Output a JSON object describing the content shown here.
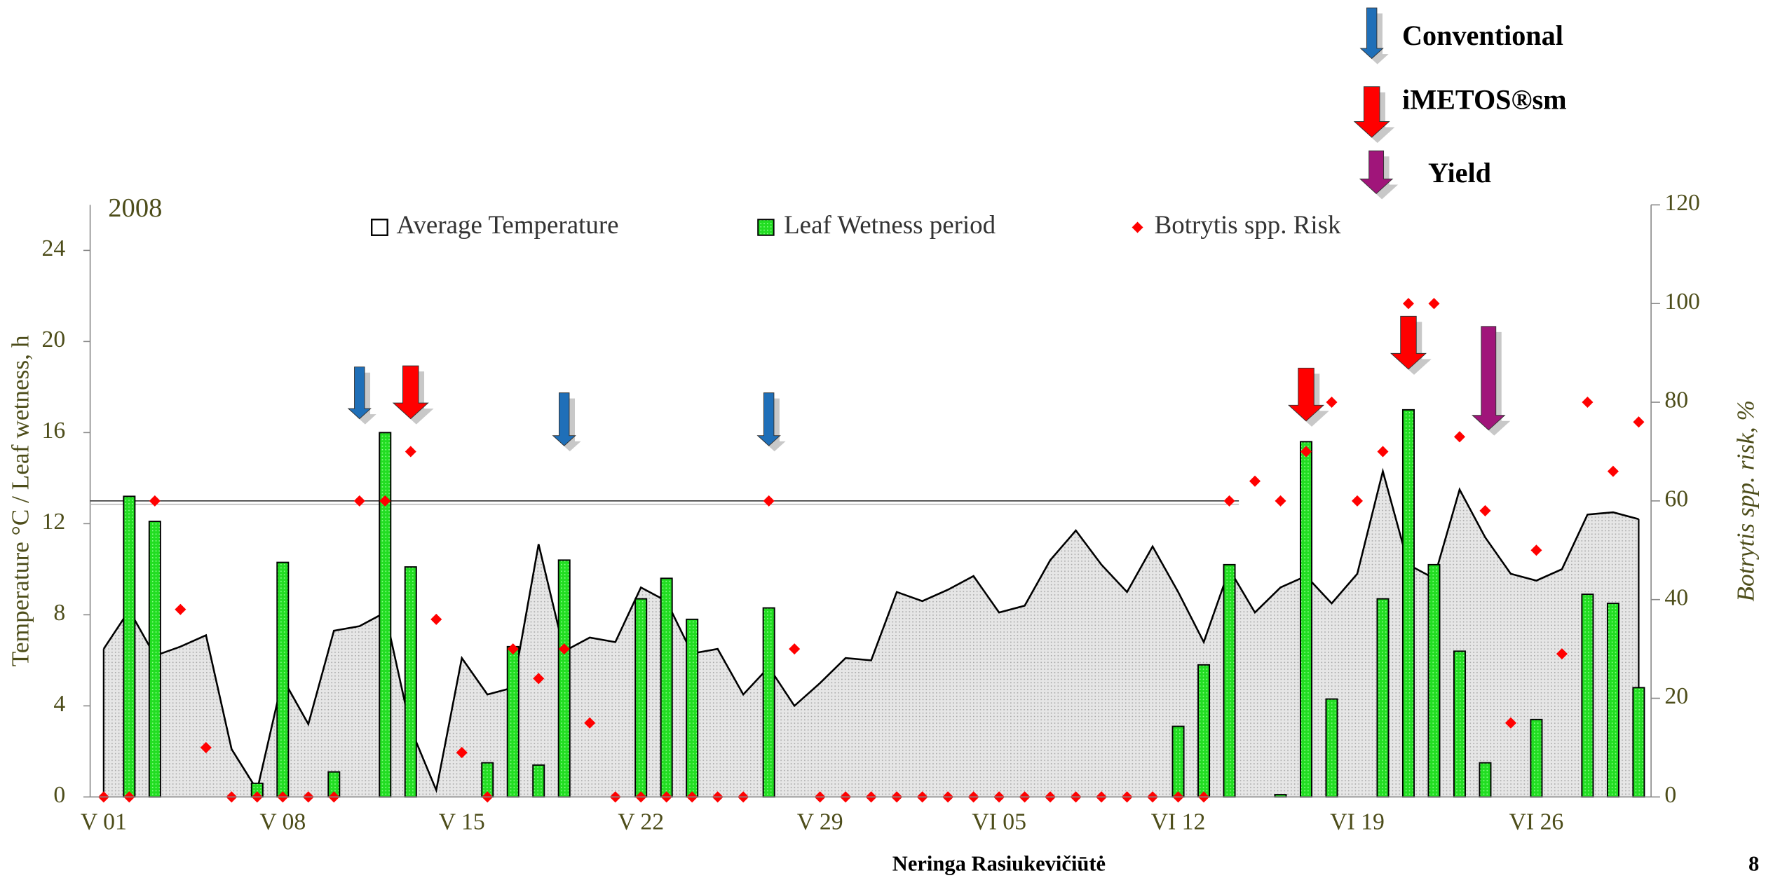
{
  "chart_data": {
    "type": "combo",
    "year_label": "2008",
    "y_label": "Temperature °C / Leaf wetness, h",
    "y2_label": "Botrytis spp. risk, %",
    "footer": "Neringa Rasiukevičiūtė",
    "page_number": "8",
    "categories": [
      "V 01",
      null,
      null,
      null,
      null,
      null,
      null,
      "V 08",
      null,
      null,
      null,
      null,
      null,
      null,
      "V 15",
      null,
      null,
      null,
      null,
      null,
      null,
      "V 22",
      null,
      null,
      null,
      null,
      null,
      null,
      "V 29",
      null,
      null,
      null,
      null,
      null,
      null,
      "VI 05",
      null,
      null,
      null,
      null,
      null,
      null,
      "VI 12",
      null,
      null,
      null,
      null,
      null,
      null,
      "VI 19",
      null,
      null,
      null,
      null,
      null,
      null,
      "VI 26",
      null,
      null,
      null,
      null
    ],
    "series": [
      {
        "name": "Average Temperature",
        "type": "area",
        "color": "#000000",
        "fill": "#d9d9d9",
        "values": [
          6.5,
          8.2,
          6.2,
          6.6,
          7.1,
          2.1,
          0.3,
          5.2,
          3.2,
          7.3,
          7.5,
          8.1,
          3.0,
          0.3,
          6.1,
          4.5,
          4.8,
          11.1,
          6.4,
          7.0,
          6.8,
          9.2,
          8.6,
          6.3,
          6.5,
          4.5,
          5.7,
          4.0,
          5.0,
          6.1,
          6.0,
          9.0,
          8.6,
          9.1,
          9.7,
          8.1,
          8.4,
          10.4,
          11.7,
          10.2,
          9.0,
          11.0,
          9.0,
          6.8,
          10.0,
          8.1,
          9.2,
          9.7,
          8.5,
          9.8,
          14.3,
          10.2,
          9.6,
          13.5,
          11.4,
          9.8,
          9.5,
          10.0,
          12.4,
          12.5,
          12.2
        ]
      },
      {
        "name": "Leaf Wetness period",
        "type": "bar",
        "color": "#22dd22",
        "values": [
          null,
          13.2,
          12.1,
          null,
          null,
          null,
          0.6,
          10.3,
          null,
          1.1,
          null,
          16.0,
          10.1,
          null,
          null,
          1.5,
          6.6,
          1.4,
          10.4,
          null,
          null,
          8.7,
          9.6,
          7.8,
          null,
          null,
          8.3,
          null,
          null,
          null,
          null,
          null,
          null,
          null,
          null,
          null,
          null,
          null,
          null,
          null,
          null,
          null,
          3.1,
          5.8,
          10.2,
          null,
          0.1,
          15.6,
          4.3,
          null,
          8.7,
          17.0,
          10.2,
          6.4,
          1.5,
          null,
          3.4,
          null,
          8.9,
          8.5,
          4.8
        ]
      },
      {
        "name": "Botrytis spp. Risk",
        "type": "scatter",
        "axis": "y2",
        "color": "#ff0000",
        "values": [
          0,
          0,
          60,
          38,
          10,
          0,
          0,
          0,
          0,
          0,
          60,
          60,
          70,
          36,
          9,
          0,
          30,
          24,
          30,
          15,
          0,
          0,
          0,
          0,
          0,
          0,
          60,
          30,
          0,
          0,
          0,
          0,
          0,
          0,
          0,
          0,
          0,
          0,
          0,
          0,
          0,
          0,
          0,
          0,
          60,
          64,
          60,
          70,
          80,
          60,
          70,
          100,
          100,
          73,
          58,
          15,
          50,
          29,
          80,
          66,
          76
        ]
      }
    ],
    "threshold": 60,
    "arrows": [
      {
        "name": "Conventional",
        "color": "#1f6fb8",
        "at": [
          10,
          18,
          26
        ]
      },
      {
        "name": "iMETOS®sm",
        "color": "#ff0000",
        "at": [
          12,
          47,
          51
        ]
      },
      {
        "name": "Yield",
        "color": "#a0157a",
        "at": [
          54
        ]
      }
    ],
    "ylim": [
      0,
      26
    ],
    "yticks": [
      0,
      4,
      8,
      12,
      16,
      20,
      24
    ],
    "y2lim": [
      0,
      120
    ],
    "y2ticks": [
      0,
      20,
      40,
      60,
      80,
      100,
      120
    ]
  }
}
